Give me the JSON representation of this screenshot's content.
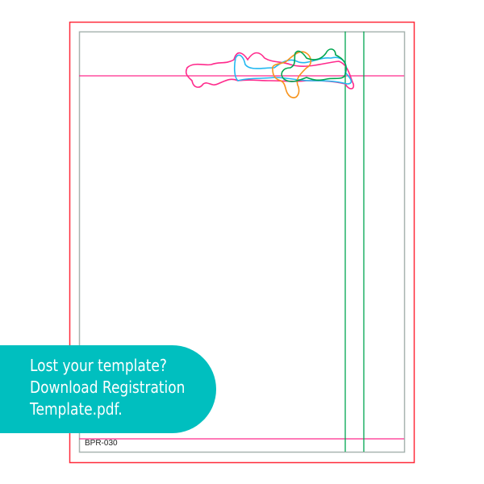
{
  "banner": {
    "line1": "Lost your template?",
    "line2": "Download Registration",
    "line3": "Template.pdf.",
    "color": "#00bfbf"
  },
  "template": {
    "code": "BPR-030"
  },
  "colors": {
    "outer_border": "#ff2a3a",
    "inner_border": "#a8b4b0",
    "guide_pink": "#ff2a8c",
    "guide_green": "#00a650",
    "blob_cyan": "#22b8f0",
    "blob_orange": "#f7941d"
  }
}
